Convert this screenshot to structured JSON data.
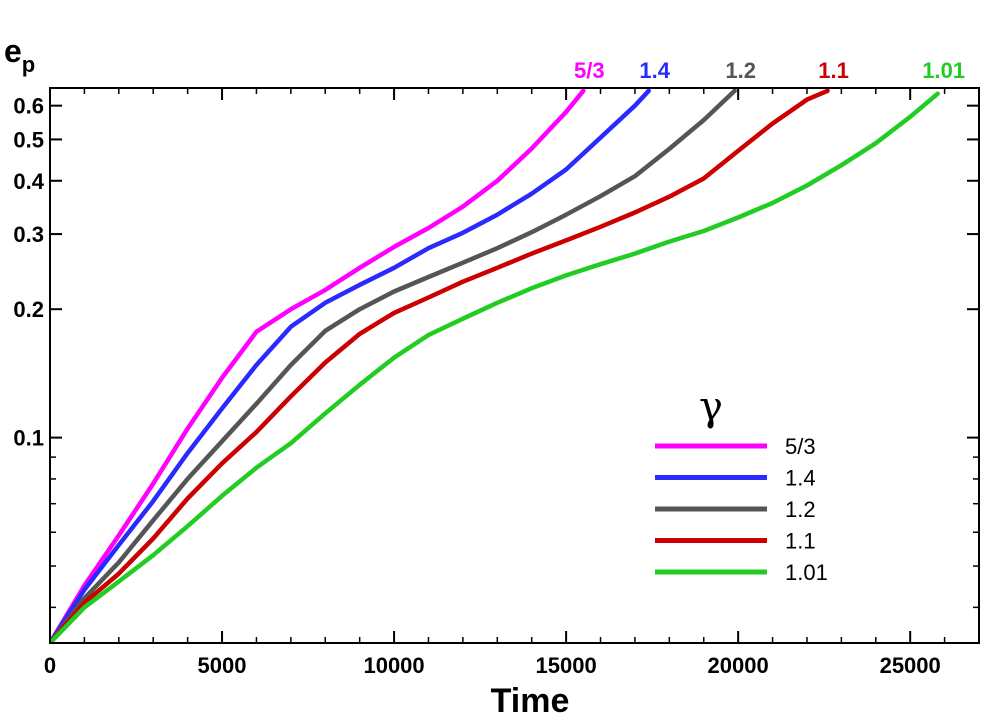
{
  "chart_data": {
    "type": "line",
    "title": "",
    "xlabel": "Time",
    "ylabel": "e",
    "ylabel_subscript": "p",
    "yscale": "log",
    "xlim": [
      0,
      27000
    ],
    "ylim": [
      0.033,
      0.66
    ],
    "x_ticks": [
      0,
      5000,
      10000,
      15000,
      20000,
      25000
    ],
    "x_tick_labels": [
      "0",
      "5000",
      "10000",
      "15000",
      "20000",
      "25000"
    ],
    "y_ticks": [
      0.1,
      0.2,
      0.3,
      0.4,
      0.5,
      0.6
    ],
    "y_tick_labels": [
      "0.1",
      "0.2",
      "0.3",
      "0.4",
      "0.5",
      "0.6"
    ],
    "legend": {
      "title": "γ",
      "position": "bottom-right"
    },
    "series": [
      {
        "name": "5/3",
        "color": "#ff00ff",
        "points": [
          [
            0,
            0.033
          ],
          [
            1000,
            0.045
          ],
          [
            2000,
            0.059
          ],
          [
            3000,
            0.078
          ],
          [
            4000,
            0.105
          ],
          [
            5000,
            0.138
          ],
          [
            6000,
            0.177
          ],
          [
            7000,
            0.2
          ],
          [
            8000,
            0.222
          ],
          [
            9000,
            0.25
          ],
          [
            10000,
            0.28
          ],
          [
            11000,
            0.31
          ],
          [
            12000,
            0.348
          ],
          [
            13000,
            0.4
          ],
          [
            14000,
            0.476
          ],
          [
            15000,
            0.58
          ],
          [
            15500,
            0.65
          ]
        ]
      },
      {
        "name": "1.4",
        "color": "#2a2aff",
        "points": [
          [
            0,
            0.033
          ],
          [
            1000,
            0.044
          ],
          [
            2000,
            0.056
          ],
          [
            3000,
            0.071
          ],
          [
            4000,
            0.092
          ],
          [
            5000,
            0.117
          ],
          [
            6000,
            0.148
          ],
          [
            7000,
            0.182
          ],
          [
            8000,
            0.207
          ],
          [
            9000,
            0.228
          ],
          [
            10000,
            0.25
          ],
          [
            11000,
            0.278
          ],
          [
            12000,
            0.302
          ],
          [
            13000,
            0.333
          ],
          [
            14000,
            0.373
          ],
          [
            15000,
            0.425
          ],
          [
            16000,
            0.505
          ],
          [
            17000,
            0.6
          ],
          [
            17400,
            0.65
          ]
        ]
      },
      {
        "name": "1.2",
        "color": "#555555",
        "points": [
          [
            0,
            0.033
          ],
          [
            1000,
            0.042
          ],
          [
            2000,
            0.051
          ],
          [
            3000,
            0.064
          ],
          [
            4000,
            0.08
          ],
          [
            5000,
            0.098
          ],
          [
            6000,
            0.12
          ],
          [
            7000,
            0.148
          ],
          [
            8000,
            0.178
          ],
          [
            9000,
            0.2
          ],
          [
            10000,
            0.22
          ],
          [
            11000,
            0.238
          ],
          [
            12000,
            0.257
          ],
          [
            13000,
            0.278
          ],
          [
            14000,
            0.303
          ],
          [
            15000,
            0.333
          ],
          [
            16000,
            0.368
          ],
          [
            17000,
            0.41
          ],
          [
            18000,
            0.475
          ],
          [
            19000,
            0.555
          ],
          [
            19900,
            0.65
          ]
        ]
      },
      {
        "name": "1.1",
        "color": "#cc0000",
        "points": [
          [
            0,
            0.033
          ],
          [
            1000,
            0.041
          ],
          [
            2000,
            0.048
          ],
          [
            3000,
            0.058
          ],
          [
            4000,
            0.072
          ],
          [
            5000,
            0.087
          ],
          [
            6000,
            0.103
          ],
          [
            7000,
            0.125
          ],
          [
            8000,
            0.15
          ],
          [
            9000,
            0.175
          ],
          [
            10000,
            0.196
          ],
          [
            11000,
            0.213
          ],
          [
            12000,
            0.232
          ],
          [
            13000,
            0.25
          ],
          [
            14000,
            0.27
          ],
          [
            15000,
            0.29
          ],
          [
            16000,
            0.312
          ],
          [
            17000,
            0.337
          ],
          [
            18000,
            0.367
          ],
          [
            19000,
            0.405
          ],
          [
            20000,
            0.47
          ],
          [
            21000,
            0.545
          ],
          [
            22000,
            0.62
          ],
          [
            22600,
            0.65
          ]
        ]
      },
      {
        "name": "1.01",
        "color": "#22cc22",
        "points": [
          [
            0,
            0.033
          ],
          [
            1000,
            0.04
          ],
          [
            2000,
            0.046
          ],
          [
            3000,
            0.053
          ],
          [
            4000,
            0.062
          ],
          [
            5000,
            0.073
          ],
          [
            6000,
            0.085
          ],
          [
            7000,
            0.097
          ],
          [
            8000,
            0.114
          ],
          [
            9000,
            0.133
          ],
          [
            10000,
            0.154
          ],
          [
            11000,
            0.174
          ],
          [
            12000,
            0.19
          ],
          [
            13000,
            0.207
          ],
          [
            14000,
            0.224
          ],
          [
            15000,
            0.24
          ],
          [
            16000,
            0.255
          ],
          [
            17000,
            0.27
          ],
          [
            18000,
            0.288
          ],
          [
            19000,
            0.305
          ],
          [
            20000,
            0.328
          ],
          [
            21000,
            0.355
          ],
          [
            22000,
            0.39
          ],
          [
            23000,
            0.435
          ],
          [
            24000,
            0.49
          ],
          [
            25000,
            0.565
          ],
          [
            25800,
            0.64
          ]
        ]
      }
    ]
  }
}
